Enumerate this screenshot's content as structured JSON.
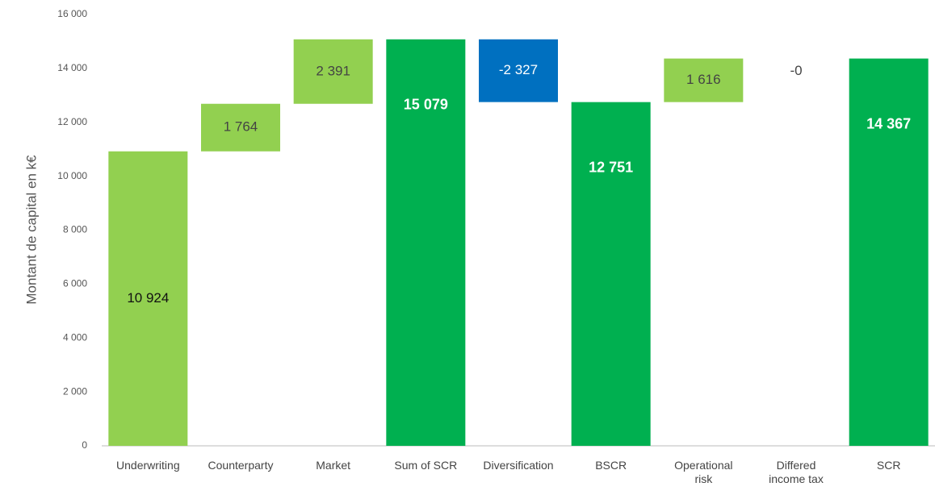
{
  "chart_data": {
    "type": "waterfall",
    "y_label": "Montant de capital en k€",
    "categories": [
      "Underwriting",
      "Counterparty",
      "Market",
      "Sum of SCR",
      "Diversification",
      "BSCR",
      "Operational risk",
      "Differed income tax",
      "SCR"
    ],
    "values": [
      10924,
      1764,
      2391,
      15079,
      -2327,
      12751,
      1616,
      0,
      14367
    ],
    "value_labels": [
      "10 924",
      "1 764",
      "2 391",
      "15 079",
      "-2 327",
      "12 751",
      "1 616",
      "-0",
      "14 367"
    ],
    "measure": [
      "relative",
      "relative",
      "relative",
      "total",
      "relative",
      "total",
      "relative",
      "relative",
      "total"
    ],
    "colors": [
      "#92d050",
      "#92d050",
      "#92d050",
      "#00b050",
      "#0070c0",
      "#00b050",
      "#92d050",
      "#92d050",
      "#00b050"
    ],
    "ylim": [
      0,
      16000
    ],
    "yticks": [
      0,
      {
        "value": 2000,
        "label": "2 000"
      },
      {
        "value": 4000,
        "label": "4 000"
      },
      {
        "value": 6000,
        "label": "6 000"
      },
      {
        "value": 8000,
        "label": "8 000"
      },
      {
        "value": 10000,
        "label": "10 000"
      },
      {
        "value": 12000,
        "label": "12 000"
      },
      {
        "value": 14000,
        "label": "14 000"
      },
      {
        "value": 16000,
        "label": "16 000"
      }
    ],
    "grid": false
  }
}
